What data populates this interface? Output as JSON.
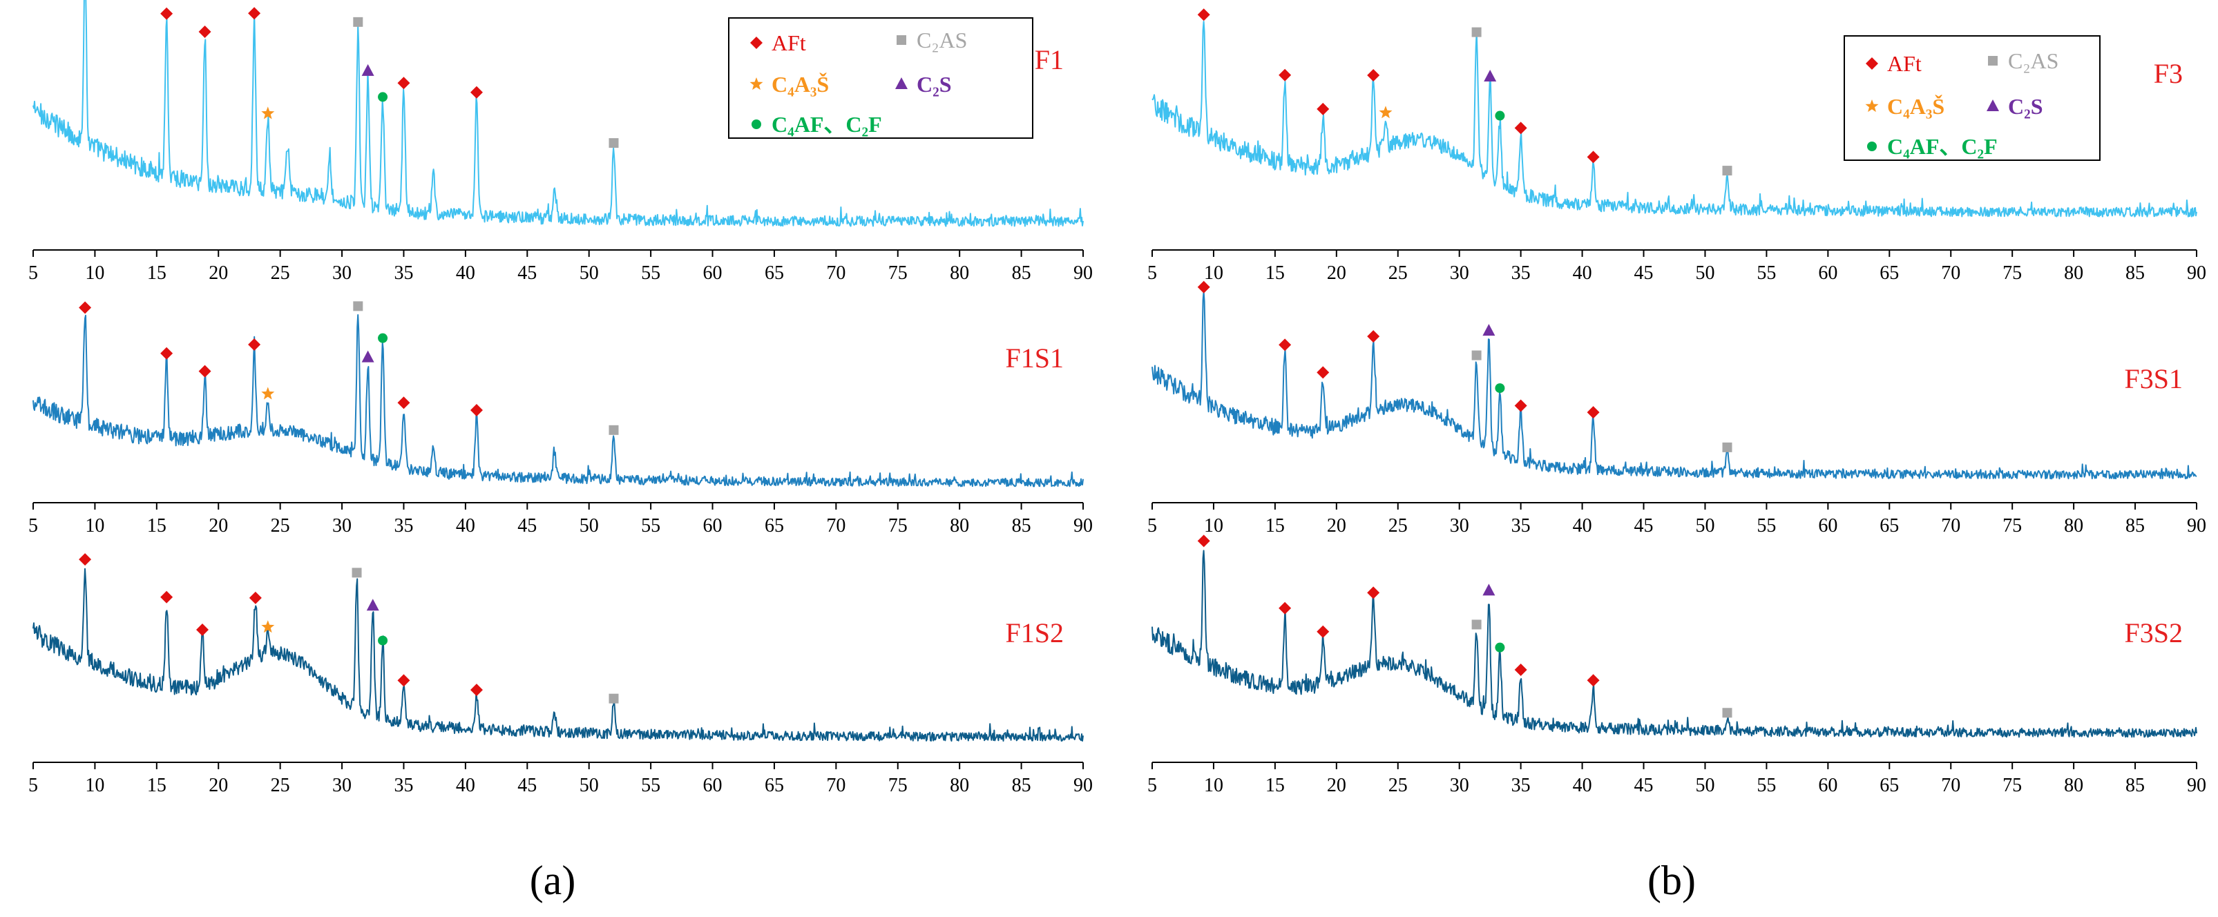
{
  "colors": {
    "AFt": "#e01010",
    "C2AS": "#a6a6a6",
    "C4A3S": "#f7941d",
    "C2S": "#7030a0",
    "C4AF_C2F": "#00b050",
    "sample_label": "#e52020",
    "trace_light": "#3fc1f0",
    "trace_mid": "#1f80bf",
    "trace_dark": "#0d5c8a",
    "axis": "#000000"
  },
  "panels": [
    {
      "id": "a",
      "label": "(a)",
      "label_letter": "a"
    },
    {
      "id": "b",
      "label": "(b)",
      "label_letter": "b"
    }
  ],
  "legends": [
    {
      "panel": "a",
      "entries": [
        {
          "marker": "diamond",
          "phase": "AFt",
          "text": "AFt"
        },
        {
          "marker": "square",
          "phase": "C2AS",
          "text": "C₂AS"
        },
        {
          "marker": "star",
          "phase": "C4A3S",
          "text": "C₄A₃Š"
        },
        {
          "marker": "triangle",
          "phase": "C2S",
          "text": "C₂S"
        },
        {
          "marker": "circle",
          "phase": "C4AF_C2F",
          "text": "C₄AF、C₂F"
        }
      ]
    },
    {
      "panel": "b",
      "entries": [
        {
          "marker": "diamond",
          "phase": "AFt",
          "text": "AFt"
        },
        {
          "marker": "square",
          "phase": "C2AS",
          "text": "C₂AS"
        },
        {
          "marker": "star",
          "phase": "C4A3S",
          "text": "C₄A₃Š"
        },
        {
          "marker": "triangle",
          "phase": "C2S",
          "text": "C₂S"
        },
        {
          "marker": "circle",
          "phase": "C4AF_C2F",
          "text": "C₄AF、C₂F"
        }
      ]
    }
  ],
  "chart_data": [
    {
      "type": "line",
      "panel": "a",
      "sample": "F1",
      "trace": "trace_light",
      "xlim": [
        5,
        90
      ],
      "xticks": [
        5,
        10,
        15,
        20,
        25,
        30,
        35,
        40,
        45,
        50,
        55,
        60,
        65,
        70,
        75,
        80,
        85,
        90
      ],
      "baseline": {
        "start": 0.6,
        "end": 0.12,
        "decay": 12,
        "hump": 0.04,
        "hump_center": 26,
        "hump_width": 6
      },
      "peaks": [
        {
          "x": 9.2,
          "h": 0.72,
          "phase": "AFt"
        },
        {
          "x": 15.8,
          "h": 0.66,
          "phase": "AFt"
        },
        {
          "x": 18.9,
          "h": 0.62,
          "phase": "AFt"
        },
        {
          "x": 22.9,
          "h": 0.72,
          "phase": "AFt"
        },
        {
          "x": 24.0,
          "h": 0.3,
          "phase": "C4A3S"
        },
        {
          "x": 31.3,
          "h": 0.75,
          "phase": "C2AS"
        },
        {
          "x": 32.1,
          "h": 0.55,
          "phase": "C2S"
        },
        {
          "x": 33.3,
          "h": 0.45,
          "phase": "C4AF_C2F"
        },
        {
          "x": 35.0,
          "h": 0.52,
          "phase": "AFt"
        },
        {
          "x": 40.9,
          "h": 0.5,
          "phase": "AFt"
        },
        {
          "x": 52.0,
          "h": 0.3,
          "phase": "C2AS"
        },
        {
          "x": 25.6,
          "h": 0.2,
          "phase": ""
        },
        {
          "x": 29.0,
          "h": 0.2,
          "phase": ""
        },
        {
          "x": 37.4,
          "h": 0.18,
          "phase": ""
        },
        {
          "x": 47.2,
          "h": 0.12,
          "phase": ""
        }
      ]
    },
    {
      "type": "line",
      "panel": "a",
      "sample": "F1S1",
      "trace": "trace_mid",
      "xlim": [
        5,
        90
      ],
      "xticks": [
        5,
        10,
        15,
        20,
        25,
        30,
        35,
        40,
        45,
        50,
        55,
        60,
        65,
        70,
        75,
        80,
        85,
        90
      ],
      "baseline": {
        "start": 0.5,
        "end": 0.1,
        "decay": 15,
        "hump": 0.16,
        "hump_center": 25,
        "hump_width": 7
      },
      "peaks": [
        {
          "x": 9.2,
          "h": 0.55,
          "phase": "AFt"
        },
        {
          "x": 15.8,
          "h": 0.4,
          "phase": "AFt"
        },
        {
          "x": 18.9,
          "h": 0.3,
          "phase": "AFt"
        },
        {
          "x": 22.9,
          "h": 0.4,
          "phase": "AFt"
        },
        {
          "x": 24.0,
          "h": 0.15,
          "phase": "C4A3S"
        },
        {
          "x": 31.3,
          "h": 0.72,
          "phase": "C2AS"
        },
        {
          "x": 32.1,
          "h": 0.48,
          "phase": "C2S"
        },
        {
          "x": 33.3,
          "h": 0.6,
          "phase": "C4AF_C2F"
        },
        {
          "x": 35.0,
          "h": 0.3,
          "phase": "AFt"
        },
        {
          "x": 40.9,
          "h": 0.3,
          "phase": "AFt"
        },
        {
          "x": 52.0,
          "h": 0.22,
          "phase": "C2AS"
        },
        {
          "x": 47.2,
          "h": 0.14,
          "phase": ""
        },
        {
          "x": 37.4,
          "h": 0.12,
          "phase": ""
        }
      ]
    },
    {
      "type": "line",
      "panel": "a",
      "sample": "F1S2",
      "trace": "trace_dark",
      "xlim": [
        5,
        90
      ],
      "xticks": [
        5,
        10,
        15,
        20,
        25,
        30,
        35,
        40,
        45,
        50,
        55,
        60,
        65,
        70,
        75,
        80,
        85,
        90
      ],
      "baseline": {
        "start": 0.62,
        "end": 0.12,
        "decay": 14,
        "hump": 0.28,
        "hump_center": 25,
        "hump_width": 5
      },
      "peaks": [
        {
          "x": 9.2,
          "h": 0.45,
          "phase": "AFt"
        },
        {
          "x": 15.8,
          "h": 0.4,
          "phase": "AFt"
        },
        {
          "x": 18.7,
          "h": 0.24,
          "phase": "AFt"
        },
        {
          "x": 23.0,
          "h": 0.26,
          "phase": "AFt"
        },
        {
          "x": 24.0,
          "h": 0.1,
          "phase": "C4A3S"
        },
        {
          "x": 31.2,
          "h": 0.62,
          "phase": "C2AS"
        },
        {
          "x": 32.5,
          "h": 0.5,
          "phase": "C2S"
        },
        {
          "x": 33.3,
          "h": 0.35,
          "phase": "C4AF_C2F"
        },
        {
          "x": 35.0,
          "h": 0.18,
          "phase": "AFt"
        },
        {
          "x": 40.9,
          "h": 0.16,
          "phase": "AFt"
        },
        {
          "x": 52.0,
          "h": 0.14,
          "phase": "C2AS"
        },
        {
          "x": 47.2,
          "h": 0.1,
          "phase": ""
        }
      ]
    },
    {
      "type": "line",
      "panel": "b",
      "sample": "F3",
      "trace": "trace_light",
      "xlim": [
        5,
        90
      ],
      "xticks": [
        5,
        10,
        15,
        20,
        25,
        30,
        35,
        40,
        45,
        50,
        55,
        60,
        65,
        70,
        75,
        80,
        85,
        90
      ],
      "baseline": {
        "start": 0.62,
        "end": 0.16,
        "decay": 13,
        "hump": 0.22,
        "hump_center": 27,
        "hump_width": 6
      },
      "peaks": [
        {
          "x": 9.2,
          "h": 0.48,
          "phase": "AFt"
        },
        {
          "x": 15.8,
          "h": 0.35,
          "phase": "AFt"
        },
        {
          "x": 18.9,
          "h": 0.22,
          "phase": "AFt"
        },
        {
          "x": 23.0,
          "h": 0.3,
          "phase": "AFt"
        },
        {
          "x": 24.0,
          "h": 0.12,
          "phase": "C4A3S"
        },
        {
          "x": 31.4,
          "h": 0.55,
          "phase": "C2AS"
        },
        {
          "x": 32.5,
          "h": 0.4,
          "phase": "C2S"
        },
        {
          "x": 33.3,
          "h": 0.26,
          "phase": "C4AF_C2F"
        },
        {
          "x": 35.0,
          "h": 0.25,
          "phase": "AFt"
        },
        {
          "x": 40.9,
          "h": 0.18,
          "phase": "AFt"
        },
        {
          "x": 51.8,
          "h": 0.14,
          "phase": "C2AS"
        }
      ]
    },
    {
      "type": "line",
      "panel": "b",
      "sample": "F3S1",
      "trace": "trace_mid",
      "xlim": [
        5,
        90
      ],
      "xticks": [
        5,
        10,
        15,
        20,
        25,
        30,
        35,
        40,
        45,
        50,
        55,
        60,
        65,
        70,
        75,
        80,
        85,
        90
      ],
      "baseline": {
        "start": 0.66,
        "end": 0.14,
        "decay": 12,
        "hump": 0.26,
        "hump_center": 26,
        "hump_width": 6
      },
      "peaks": [
        {
          "x": 9.2,
          "h": 0.55,
          "phase": "AFt"
        },
        {
          "x": 15.8,
          "h": 0.4,
          "phase": "AFt"
        },
        {
          "x": 18.9,
          "h": 0.26,
          "phase": "AFt"
        },
        {
          "x": 23.0,
          "h": 0.35,
          "phase": "AFt"
        },
        {
          "x": 31.4,
          "h": 0.4,
          "phase": "C2AS"
        },
        {
          "x": 32.4,
          "h": 0.56,
          "phase": "C2S"
        },
        {
          "x": 33.3,
          "h": 0.3,
          "phase": "C4AF_C2F"
        },
        {
          "x": 35.0,
          "h": 0.25,
          "phase": "AFt"
        },
        {
          "x": 40.9,
          "h": 0.26,
          "phase": "AFt"
        },
        {
          "x": 51.8,
          "h": 0.1,
          "phase": "C2AS"
        }
      ]
    },
    {
      "type": "line",
      "panel": "b",
      "sample": "F3S2",
      "trace": "trace_dark",
      "xlim": [
        5,
        90
      ],
      "xticks": [
        5,
        10,
        15,
        20,
        25,
        30,
        35,
        40,
        45,
        50,
        55,
        60,
        65,
        70,
        75,
        80,
        85,
        90
      ],
      "baseline": {
        "start": 0.62,
        "end": 0.14,
        "decay": 12,
        "hump": 0.24,
        "hump_center": 25,
        "hump_width": 6
      },
      "peaks": [
        {
          "x": 9.2,
          "h": 0.55,
          "phase": "AFt"
        },
        {
          "x": 15.8,
          "h": 0.35,
          "phase": "AFt"
        },
        {
          "x": 18.9,
          "h": 0.22,
          "phase": "AFt"
        },
        {
          "x": 23.0,
          "h": 0.32,
          "phase": "AFt"
        },
        {
          "x": 31.4,
          "h": 0.36,
          "phase": "C2AS"
        },
        {
          "x": 32.4,
          "h": 0.55,
          "phase": "C2S"
        },
        {
          "x": 33.3,
          "h": 0.3,
          "phase": "C4AF_C2F"
        },
        {
          "x": 35.0,
          "h": 0.22,
          "phase": "AFt"
        },
        {
          "x": 40.9,
          "h": 0.2,
          "phase": "AFt"
        },
        {
          "x": 51.8,
          "h": 0.06,
          "phase": "C2AS"
        }
      ]
    }
  ]
}
